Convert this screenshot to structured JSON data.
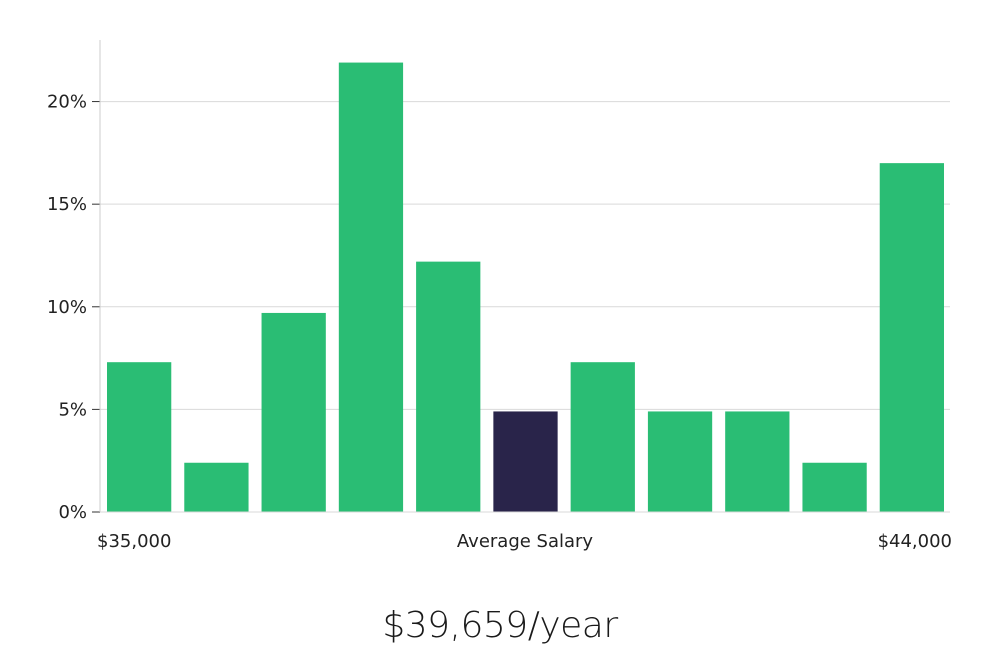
{
  "chart_data": {
    "type": "bar",
    "title": "",
    "xlabel": "Average Salary",
    "ylabel": "",
    "x_range_labels": {
      "start": "$35,000",
      "end": "$44,000"
    },
    "ylim": [
      0,
      23
    ],
    "yticks": [
      0,
      5,
      10,
      15,
      20
    ],
    "ytick_labels": [
      "0%",
      "5%",
      "10%",
      "15%",
      "20%"
    ],
    "values": [
      7.3,
      2.4,
      9.7,
      21.9,
      12.2,
      4.9,
      7.3,
      4.9,
      4.9,
      2.4,
      17.0
    ],
    "highlight_index": 5,
    "grid": true,
    "colors": {
      "bar": "#2abd74",
      "highlight": "#29244a",
      "grid": "#d9d9d9",
      "axis": "#cccccc"
    }
  },
  "summary": "$39,659/year"
}
